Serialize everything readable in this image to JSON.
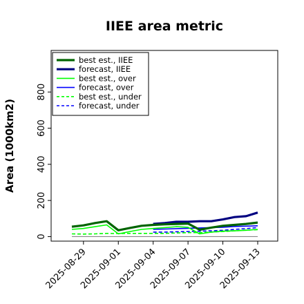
{
  "chart_data": {
    "type": "line",
    "title": "IIEE area metric",
    "xlabel": "",
    "ylabel": "Area (1000km2)",
    "ylim": [
      -25,
      1030
    ],
    "yticks": [
      0,
      200,
      400,
      600,
      800
    ],
    "xticks": [
      "2025-08-29",
      "2025-09-01",
      "2025-09-04",
      "2025-09-07",
      "2025-09-10",
      "2025-09-13"
    ],
    "highlighted_xtick": "2025-09-04",
    "highlight_color": "#228b22",
    "legend_position": "top-left",
    "grid": false,
    "zero_line": true,
    "series": [
      {
        "name": "best est., IIEE",
        "color": "#006400",
        "style": "solid",
        "width": "thick",
        "x": [
          "2025-08-28",
          "2025-08-29",
          "2025-08-30",
          "2025-08-31",
          "2025-09-01",
          "2025-09-02",
          "2025-09-03",
          "2025-09-04",
          "2025-09-05",
          "2025-09-06",
          "2025-09-07",
          "2025-09-08",
          "2025-09-09",
          "2025-09-10",
          "2025-09-11",
          "2025-09-12",
          "2025-09-13"
        ],
        "values": [
          55,
          62,
          75,
          85,
          35,
          48,
          60,
          65,
          68,
          70,
          72,
          38,
          50,
          60,
          65,
          70,
          78
        ]
      },
      {
        "name": "forecast, IIEE",
        "color": "#000080",
        "style": "solid",
        "width": "thick",
        "x": [
          "2025-09-04",
          "2025-09-05",
          "2025-09-06",
          "2025-09-07",
          "2025-09-08",
          "2025-09-09",
          "2025-09-10",
          "2025-09-11",
          "2025-09-12",
          "2025-09-13"
        ],
        "values": [
          70,
          75,
          82,
          82,
          85,
          85,
          95,
          108,
          113,
          133
        ]
      },
      {
        "name": "best est., over",
        "color": "#00ff00",
        "style": "solid",
        "width": "thin",
        "x": [
          "2025-08-28",
          "2025-08-29",
          "2025-08-30",
          "2025-08-31",
          "2025-09-01",
          "2025-09-02",
          "2025-09-03",
          "2025-09-04",
          "2025-09-05",
          "2025-09-06",
          "2025-09-07",
          "2025-09-08",
          "2025-09-09",
          "2025-09-10",
          "2025-09-11",
          "2025-09-12",
          "2025-09-13"
        ],
        "values": [
          40,
          45,
          55,
          65,
          15,
          28,
          40,
          45,
          50,
          55,
          52,
          15,
          25,
          30,
          32,
          35,
          40
        ]
      },
      {
        "name": "forecast, over",
        "color": "#0000ff",
        "style": "solid",
        "width": "thin",
        "x": [
          "2025-09-04",
          "2025-09-05",
          "2025-09-06",
          "2025-09-07",
          "2025-09-08",
          "2025-09-09",
          "2025-09-10",
          "2025-09-11",
          "2025-09-12",
          "2025-09-13"
        ],
        "values": [
          40,
          42,
          44,
          46,
          48,
          50,
          52,
          56,
          58,
          60
        ]
      },
      {
        "name": "best est., under",
        "color": "#00ff00",
        "style": "dashed",
        "width": "thin",
        "x": [
          "2025-08-28",
          "2025-08-29",
          "2025-08-30",
          "2025-08-31",
          "2025-09-01",
          "2025-09-02",
          "2025-09-03",
          "2025-09-04",
          "2025-09-05",
          "2025-09-06",
          "2025-09-07",
          "2025-09-08",
          "2025-09-09",
          "2025-09-10",
          "2025-09-11",
          "2025-09-12",
          "2025-09-13"
        ],
        "values": [
          15,
          14,
          15,
          18,
          17,
          18,
          18,
          18,
          18,
          20,
          22,
          22,
          25,
          28,
          32,
          36,
          38
        ]
      },
      {
        "name": "forecast, under",
        "color": "#0000ff",
        "style": "dashed",
        "width": "thin",
        "x": [
          "2025-09-04",
          "2025-09-05",
          "2025-09-06",
          "2025-09-07",
          "2025-09-08",
          "2025-09-09",
          "2025-09-10",
          "2025-09-11",
          "2025-09-12",
          "2025-09-13"
        ],
        "values": [
          25,
          25,
          27,
          28,
          30,
          32,
          35,
          40,
          44,
          50
        ]
      }
    ]
  }
}
